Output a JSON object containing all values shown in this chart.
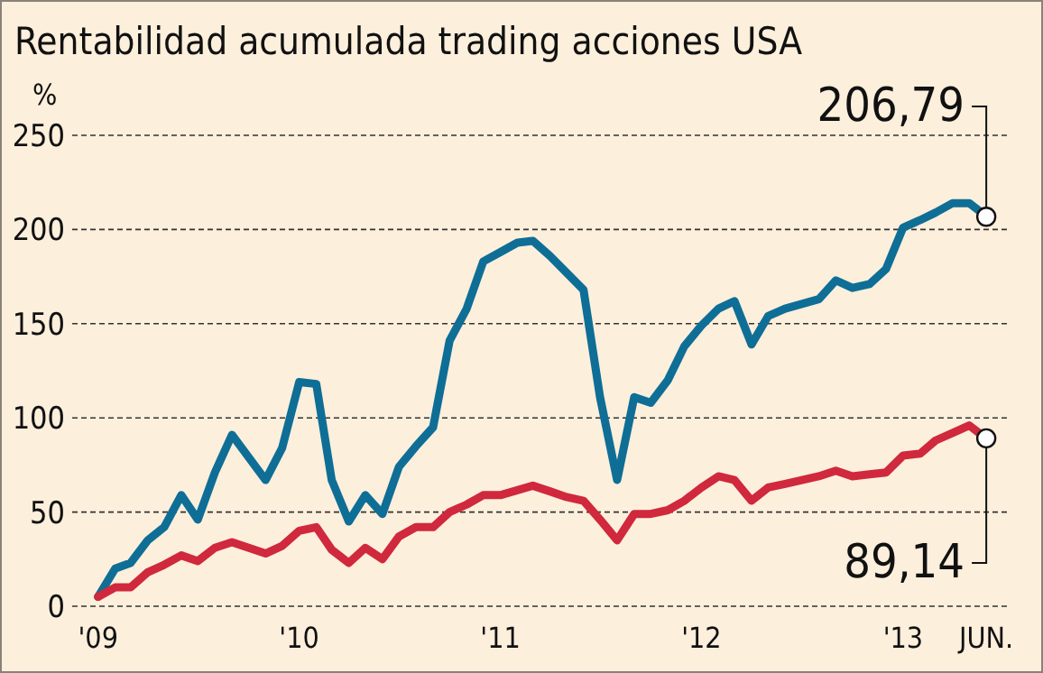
{
  "chart_data": {
    "type": "line",
    "title": "Rentabilidad acumulada trading acciones USA",
    "ylabel": "%",
    "xlim": [
      "2008-11-15",
      "2013-07-15"
    ],
    "xticks": [
      {
        "value": "2009-01",
        "label": "'09"
      },
      {
        "value": "2010-01",
        "label": "'10"
      },
      {
        "value": "2011-01",
        "label": "'11"
      },
      {
        "value": "2012-01",
        "label": "'12"
      },
      {
        "value": "2013-01",
        "label": "'13"
      },
      {
        "value": "2013-06",
        "label": "JUN."
      }
    ],
    "ylim": [
      0,
      250
    ],
    "yticks": [
      0,
      50,
      100,
      150,
      200,
      250
    ],
    "grid": "y",
    "series": [
      {
        "color": "#0f6e96",
        "x": [
          "2009-01",
          "2009-02",
          "2009-03",
          "2009-04",
          "2009-05",
          "2009-06",
          "2009-07",
          "2009-08",
          "2009-09",
          "2009-11",
          "2009-12",
          "2010-01",
          "2010-02",
          "2010-03",
          "2010-04",
          "2010-05",
          "2010-06",
          "2010-07",
          "2010-08",
          "2010-09",
          "2010-10",
          "2010-11",
          "2010-12",
          "2011-01",
          "2011-02",
          "2011-03",
          "2011-04",
          "2011-06",
          "2011-07",
          "2011-08",
          "2011-09",
          "2011-10",
          "2011-11",
          "2011-12",
          "2012-01",
          "2012-02",
          "2012-03",
          "2012-04",
          "2012-05",
          "2012-06",
          "2012-08",
          "2012-09",
          "2012-10",
          "2012-11",
          "2012-12",
          "2013-01",
          "2013-02",
          "2013-03",
          "2013-04",
          "2013-05",
          "2013-06"
        ],
        "values": [
          5,
          20,
          23,
          35,
          42,
          59,
          46,
          71,
          91,
          67,
          84,
          119,
          118,
          67,
          45,
          59,
          49,
          74,
          85,
          95,
          141,
          158,
          183,
          188,
          193,
          194,
          186,
          168,
          111,
          67,
          111,
          108,
          120,
          138,
          149,
          158,
          162,
          139,
          154,
          158,
          163,
          173,
          169,
          171,
          179,
          201,
          205,
          209,
          214,
          214,
          207
        ]
      },
      {
        "color": "#d0283c",
        "x": [
          "2009-01",
          "2009-02",
          "2009-03",
          "2009-04",
          "2009-05",
          "2009-06",
          "2009-07",
          "2009-08",
          "2009-09",
          "2009-11",
          "2009-12",
          "2010-01",
          "2010-02",
          "2010-03",
          "2010-04",
          "2010-05",
          "2010-06",
          "2010-07",
          "2010-08",
          "2010-09",
          "2010-10",
          "2010-11",
          "2010-12",
          "2011-01",
          "2011-03",
          "2011-04",
          "2011-05",
          "2011-06",
          "2011-07",
          "2011-08",
          "2011-09",
          "2011-10",
          "2011-11",
          "2011-12",
          "2012-01",
          "2012-02",
          "2012-03",
          "2012-04",
          "2012-05",
          "2012-06",
          "2012-08",
          "2012-09",
          "2012-10",
          "2012-11",
          "2012-12",
          "2013-01",
          "2013-02",
          "2013-03",
          "2013-04",
          "2013-05",
          "2013-06"
        ],
        "values": [
          5,
          10,
          10,
          18,
          22,
          27,
          24,
          31,
          34,
          28,
          32,
          40,
          42,
          30,
          23,
          31,
          25,
          37,
          42,
          42,
          50,
          54,
          59,
          59,
          64,
          61,
          58,
          56,
          46,
          35,
          49,
          49,
          51,
          56,
          63,
          69,
          67,
          56,
          63,
          65,
          69,
          72,
          69,
          70,
          71,
          80,
          81,
          88,
          92,
          96,
          89
        ]
      }
    ],
    "annotations": [
      {
        "text": "206,79",
        "x": "2013-06",
        "y": 206.79
      },
      {
        "text": "89,14",
        "x": "2013-06",
        "y": 89.14
      }
    ]
  }
}
